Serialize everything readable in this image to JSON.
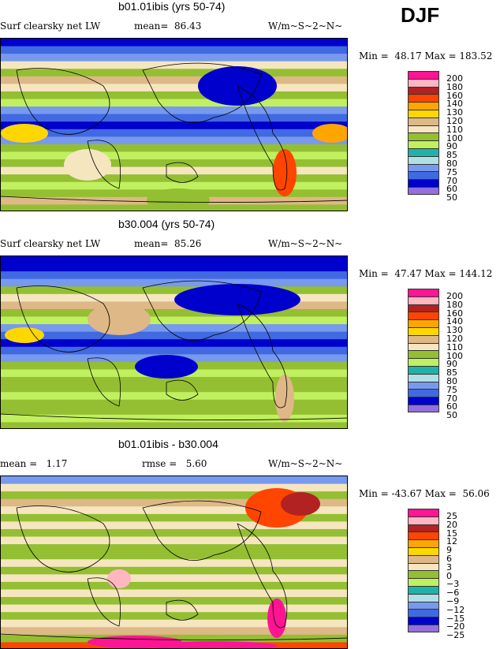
{
  "season": "DJF",
  "colors": [
    "#ff1493",
    "#ffb6c1",
    "#b22222",
    "#ff4500",
    "#ffa500",
    "#ffd700",
    "#deb887",
    "#f5e6c0",
    "#94bf32",
    "#c0f060",
    "#20b2aa",
    "#b0e0e6",
    "#7799ee",
    "#4169e1",
    "#0000cd",
    "#9370db"
  ],
  "panels": [
    {
      "title": "b01.01ibis (yrs 50-74)",
      "left": "Surf clearsky net LW",
      "stat": "mean=  86.43",
      "units": "W/m~S~2~N~",
      "minmax": "Min =  48.17 Max = 183.52",
      "levels": [
        "200",
        "180",
        "160",
        "140",
        "130",
        "120",
        "110",
        "100",
        "90",
        "85",
        "80",
        "75",
        "70",
        "60",
        "50"
      ]
    },
    {
      "title": "b30.004 (yrs 50-74)",
      "left": "Surf clearsky net LW",
      "stat": "mean=  85.26",
      "units": "W/m~S~2~N~",
      "minmax": "Min =  47.47 Max = 144.12",
      "levels": [
        "200",
        "180",
        "160",
        "140",
        "130",
        "120",
        "110",
        "100",
        "90",
        "85",
        "80",
        "75",
        "70",
        "60",
        "50"
      ]
    },
    {
      "title": "b01.01ibis - b30.004",
      "left": "mean =   1.17",
      "stat": "rmse =   5.60",
      "units": "W/m~S~2~N~",
      "minmax": "Min = -43.67 Max =  56.06",
      "levels": [
        "25",
        "20",
        "15",
        "12",
        "9",
        "6",
        "3",
        "0",
        "−3",
        "−6",
        "−9",
        "−12",
        "−15",
        "−20",
        "−25"
      ]
    }
  ]
}
